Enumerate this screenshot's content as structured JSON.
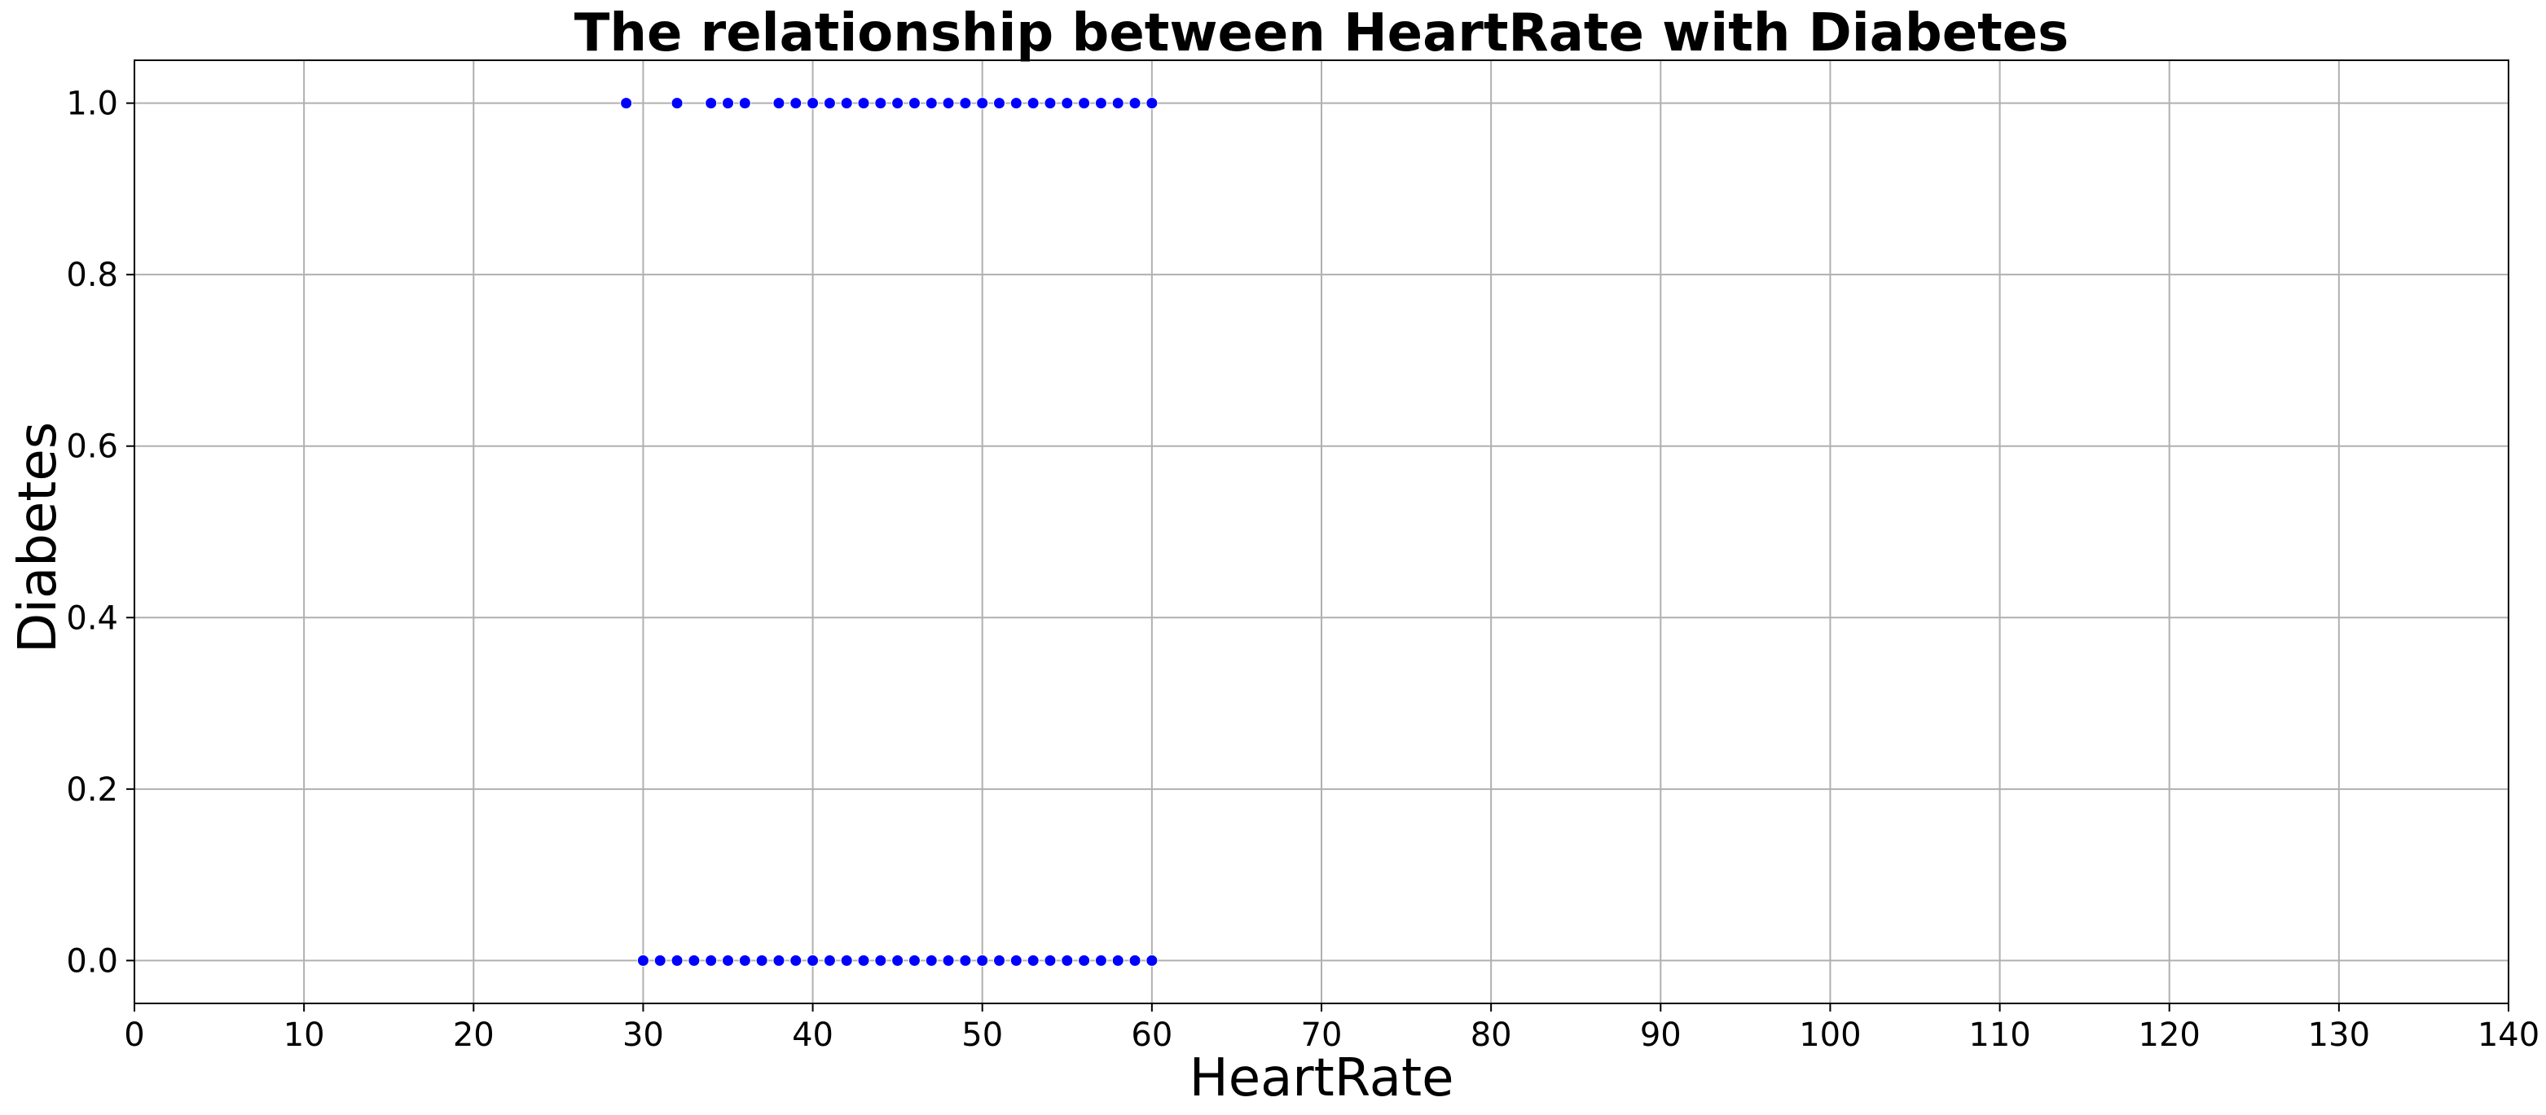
{
  "chart_data": {
    "type": "scatter",
    "title": "The relationship between HeartRate with Diabetes",
    "xlabel": "HeartRate",
    "ylabel": "Diabetes",
    "xlim": [
      0,
      140
    ],
    "ylim": [
      -0.05,
      1.05
    ],
    "x_ticks": [
      0,
      10,
      20,
      30,
      40,
      50,
      60,
      70,
      80,
      90,
      100,
      110,
      120,
      130,
      140
    ],
    "y_ticks": [
      0.0,
      0.2,
      0.4,
      0.6,
      0.8,
      1.0
    ],
    "x_tick_labels": [
      "0",
      "10",
      "20",
      "30",
      "40",
      "50",
      "60",
      "70",
      "80",
      "90",
      "100",
      "110",
      "120",
      "130",
      "140"
    ],
    "y_tick_labels": [
      "0.0",
      "0.2",
      "0.4",
      "0.6",
      "0.8",
      "1.0"
    ],
    "grid": true,
    "marker_color": "#0000ff",
    "series": [
      {
        "points": [
          [
            29,
            1
          ],
          [
            32,
            1
          ],
          [
            34,
            1
          ],
          [
            35,
            1
          ],
          [
            36,
            1
          ],
          [
            38,
            1
          ],
          [
            39,
            1
          ],
          [
            40,
            1
          ],
          [
            41,
            1
          ],
          [
            42,
            1
          ],
          [
            43,
            1
          ],
          [
            44,
            1
          ],
          [
            45,
            1
          ],
          [
            46,
            1
          ],
          [
            47,
            1
          ],
          [
            48,
            1
          ],
          [
            49,
            1
          ],
          [
            50,
            1
          ],
          [
            51,
            1
          ],
          [
            52,
            1
          ],
          [
            53,
            1
          ],
          [
            54,
            1
          ],
          [
            55,
            1
          ],
          [
            56,
            1
          ],
          [
            57,
            1
          ],
          [
            58,
            1
          ],
          [
            59,
            1
          ],
          [
            60,
            1
          ],
          [
            30,
            0
          ],
          [
            31,
            0
          ],
          [
            32,
            0
          ],
          [
            33,
            0
          ],
          [
            34,
            0
          ],
          [
            35,
            0
          ],
          [
            36,
            0
          ],
          [
            37,
            0
          ],
          [
            38,
            0
          ],
          [
            39,
            0
          ],
          [
            40,
            0
          ],
          [
            41,
            0
          ],
          [
            42,
            0
          ],
          [
            43,
            0
          ],
          [
            44,
            0
          ],
          [
            45,
            0
          ],
          [
            46,
            0
          ],
          [
            47,
            0
          ],
          [
            48,
            0
          ],
          [
            49,
            0
          ],
          [
            50,
            0
          ],
          [
            51,
            0
          ],
          [
            52,
            0
          ],
          [
            53,
            0
          ],
          [
            54,
            0
          ],
          [
            55,
            0
          ],
          [
            56,
            0
          ],
          [
            57,
            0
          ],
          [
            58,
            0
          ],
          [
            59,
            0
          ],
          [
            60,
            0
          ]
        ]
      }
    ]
  }
}
